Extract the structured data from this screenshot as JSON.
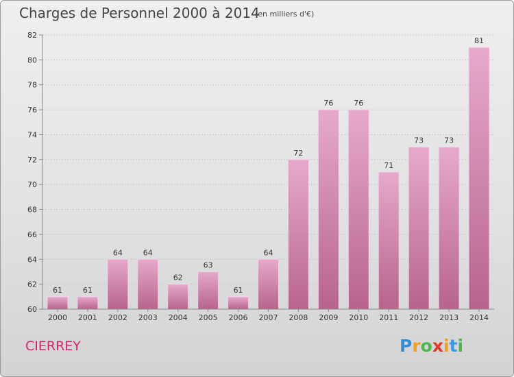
{
  "header": {
    "title": "Charges de Personnel 2000 à 2014",
    "subtitle": "(en milliers d'€)"
  },
  "footer": {
    "commune": "CIERREY",
    "logo_text": "Proxiti"
  },
  "chart_data": {
    "type": "bar",
    "title": "Charges de Personnel 2000 à 2014",
    "subtitle": "(en milliers d'€)",
    "categories": [
      "2000",
      "2001",
      "2002",
      "2003",
      "2004",
      "2005",
      "2006",
      "2007",
      "2008",
      "2009",
      "2010",
      "2011",
      "2012",
      "2013",
      "2014"
    ],
    "values": [
      61,
      61,
      64,
      64,
      62,
      63,
      61,
      64,
      72,
      76,
      76,
      71,
      73,
      73,
      81
    ],
    "ylim": [
      60,
      82
    ],
    "yticks": [
      60,
      62,
      64,
      66,
      68,
      70,
      72,
      74,
      76,
      78,
      80,
      82
    ],
    "grid": true,
    "data_labels": true,
    "colors": {
      "bar": "#c86da2",
      "bar_light": "#e6a9cd",
      "grid": "#c9c9c9",
      "axis": "#888888",
      "text": "#333333"
    }
  }
}
